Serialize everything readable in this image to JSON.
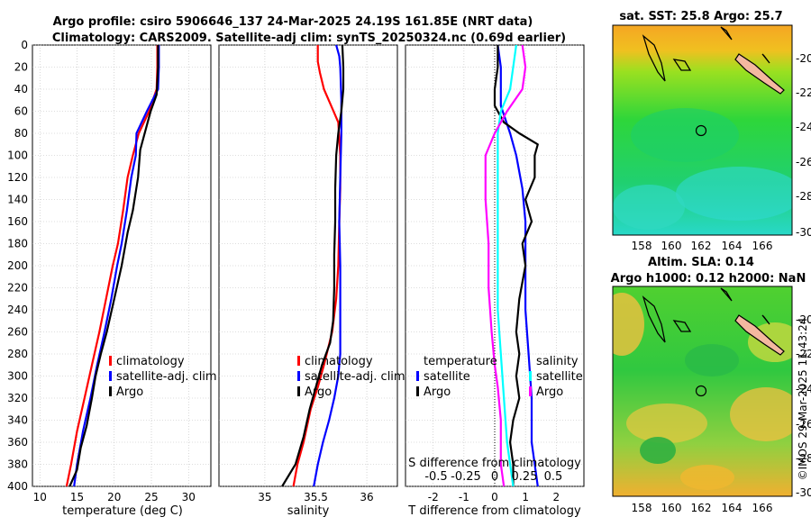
{
  "title": {
    "line1": "Argo profile: csiro 5906646_137 24-Mar-2025 24.19S 161.85E (NRT data)",
    "line2": "Climatology: CARS2009. Satellite-adj clim: synTS_20250324.nc (0.69d earlier)"
  },
  "footer": "©IMOS 29-Mar-2025 11:43:24",
  "colors": {
    "climatology": "#ff0000",
    "satellite": "#0000ff",
    "argo": "#000000",
    "satellite_salinity": "#00ffff",
    "climatology_salinity": "#ff00ff"
  },
  "chart_data": [
    {
      "type": "line",
      "id": "temperature",
      "xlabel": "temperature (deg C)",
      "xlim": [
        9,
        33
      ],
      "xticks": [
        10,
        15,
        20,
        25,
        30
      ],
      "ylim": [
        0,
        400
      ],
      "yticks": [
        0,
        20,
        40,
        60,
        80,
        100,
        120,
        140,
        160,
        180,
        200,
        220,
        240,
        260,
        280,
        300,
        320,
        340,
        360,
        380,
        400
      ],
      "ydirection": "reversed",
      "legend": [
        "climatology",
        "satellite-adj. clim",
        "Argo"
      ],
      "series": [
        {
          "name": "climatology",
          "color": "#ff0000",
          "points": [
            [
              25.8,
              0
            ],
            [
              25.8,
              20
            ],
            [
              25.7,
              40
            ],
            [
              24.7,
              60
            ],
            [
              23.3,
              80
            ],
            [
              22.5,
              100
            ],
            [
              21.8,
              120
            ],
            [
              21.2,
              150
            ],
            [
              20.5,
              180
            ],
            [
              19.8,
              200
            ],
            [
              18.9,
              230
            ],
            [
              18.0,
              260
            ],
            [
              17.0,
              290
            ],
            [
              16.0,
              320
            ],
            [
              15.0,
              350
            ],
            [
              14.2,
              380
            ],
            [
              13.6,
              400
            ]
          ]
        },
        {
          "name": "satellite-adj. clim",
          "color": "#0000ff",
          "points": [
            [
              26.0,
              0
            ],
            [
              26.0,
              20
            ],
            [
              25.9,
              40
            ],
            [
              24.4,
              60
            ],
            [
              23.0,
              80
            ],
            [
              22.9,
              100
            ],
            [
              22.3,
              120
            ],
            [
              21.7,
              150
            ],
            [
              21.0,
              180
            ],
            [
              20.4,
              200
            ],
            [
              19.6,
              230
            ],
            [
              18.7,
              260
            ],
            [
              17.7,
              290
            ],
            [
              16.8,
              320
            ],
            [
              15.8,
              350
            ],
            [
              15.0,
              380
            ],
            [
              14.6,
              400
            ]
          ]
        },
        {
          "name": "Argo",
          "color": "#000000",
          "points": [
            [
              25.9,
              0
            ],
            [
              25.9,
              20
            ],
            [
              25.7,
              45
            ],
            [
              24.9,
              60
            ],
            [
              24.3,
              75
            ],
            [
              23.5,
              95
            ],
            [
              23.2,
              120
            ],
            [
              22.5,
              150
            ],
            [
              21.8,
              170
            ],
            [
              21.0,
              200
            ],
            [
              20.0,
              230
            ],
            [
              19.0,
              260
            ],
            [
              18.2,
              280
            ],
            [
              17.5,
              300
            ],
            [
              17.0,
              320
            ],
            [
              16.3,
              345
            ],
            [
              15.5,
              365
            ],
            [
              15.0,
              385
            ],
            [
              14.0,
              400
            ]
          ]
        }
      ]
    },
    {
      "type": "line",
      "id": "salinity",
      "xlabel": "salinity",
      "xlim": [
        34.55,
        36.3
      ],
      "xticks": [
        35,
        35.5,
        36
      ],
      "ylim": [
        0,
        400
      ],
      "ydirection": "reversed",
      "legend": [
        "climatology",
        "satellite-adj. clim",
        "Argo"
      ],
      "series": [
        {
          "name": "climatology",
          "color": "#ff0000",
          "points": [
            [
              35.52,
              0
            ],
            [
              35.52,
              15
            ],
            [
              35.54,
              25
            ],
            [
              35.58,
              40
            ],
            [
              35.65,
              55
            ],
            [
              35.72,
              70
            ],
            [
              35.74,
              100
            ],
            [
              35.74,
              130
            ],
            [
              35.73,
              160
            ],
            [
              35.72,
              200
            ],
            [
              35.7,
              230
            ],
            [
              35.66,
              260
            ],
            [
              35.58,
              290
            ],
            [
              35.52,
              310
            ],
            [
              35.45,
              330
            ],
            [
              35.38,
              360
            ],
            [
              35.32,
              380
            ],
            [
              35.28,
              400
            ]
          ]
        },
        {
          "name": "satellite-adj. clim",
          "color": "#0000ff",
          "points": [
            [
              35.7,
              0
            ],
            [
              35.73,
              10
            ],
            [
              35.74,
              20
            ],
            [
              35.75,
              50
            ],
            [
              35.75,
              80
            ],
            [
              35.74,
              120
            ],
            [
              35.73,
              160
            ],
            [
              35.74,
              200
            ],
            [
              35.74,
              240
            ],
            [
              35.74,
              280
            ],
            [
              35.72,
              300
            ],
            [
              35.68,
              320
            ],
            [
              35.63,
              340
            ],
            [
              35.57,
              360
            ],
            [
              35.52,
              380
            ],
            [
              35.48,
              400
            ]
          ]
        },
        {
          "name": "Argo",
          "color": "#000000",
          "points": [
            [
              35.76,
              0
            ],
            [
              35.77,
              20
            ],
            [
              35.77,
              40
            ],
            [
              35.75,
              60
            ],
            [
              35.72,
              80
            ],
            [
              35.7,
              100
            ],
            [
              35.69,
              130
            ],
            [
              35.69,
              160
            ],
            [
              35.68,
              190
            ],
            [
              35.68,
              220
            ],
            [
              35.67,
              250
            ],
            [
              35.64,
              270
            ],
            [
              35.56,
              290
            ],
            [
              35.5,
              310
            ],
            [
              35.44,
              330
            ],
            [
              35.38,
              355
            ],
            [
              35.3,
              380
            ],
            [
              35.17,
              400
            ]
          ]
        }
      ]
    },
    {
      "type": "line",
      "id": "difference",
      "xlabel": "T difference from climatology",
      "xlim": [
        -2.9,
        2.9
      ],
      "xticks": [
        -2,
        -1,
        0,
        1,
        2
      ],
      "top_axis_label": "S difference from climatology",
      "top_axis_ticks": [
        "-0.5",
        "-0.25",
        "0",
        "0.25",
        "0.5"
      ],
      "ylim": [
        0,
        400
      ],
      "ydirection": "reversed",
      "legend_left_title": "temperature",
      "legend_left": [
        "satellite",
        "Argo"
      ],
      "legend_right_title": "salinity",
      "legend_right": [
        "satellite",
        "Argo"
      ],
      "series": [
        {
          "name": "temperature satellite",
          "color": "#0000ff",
          "points": [
            [
              0.1,
              0
            ],
            [
              0.2,
              20
            ],
            [
              0.2,
              40
            ],
            [
              0.2,
              55
            ],
            [
              0.5,
              80
            ],
            [
              0.7,
              100
            ],
            [
              0.9,
              130
            ],
            [
              1.0,
              160
            ],
            [
              1.0,
              200
            ],
            [
              1.0,
              240
            ],
            [
              1.1,
              280
            ],
            [
              1.2,
              320
            ],
            [
              1.2,
              360
            ],
            [
              1.4,
              400
            ]
          ]
        },
        {
          "name": "temperature Argo",
          "color": "#000000",
          "points": [
            [
              0.1,
              0
            ],
            [
              0.1,
              20
            ],
            [
              0.0,
              40
            ],
            [
              0.0,
              55
            ],
            [
              0.3,
              70
            ],
            [
              0.8,
              80
            ],
            [
              1.4,
              90
            ],
            [
              1.3,
              100
            ],
            [
              1.3,
              120
            ],
            [
              1.0,
              140
            ],
            [
              1.2,
              160
            ],
            [
              0.9,
              180
            ],
            [
              1.0,
              200
            ],
            [
              0.8,
              230
            ],
            [
              0.7,
              260
            ],
            [
              0.8,
              280
            ],
            [
              0.7,
              300
            ],
            [
              0.8,
              320
            ],
            [
              0.6,
              340
            ],
            [
              0.5,
              360
            ],
            [
              0.6,
              380
            ],
            [
              0.6,
              400
            ]
          ]
        },
        {
          "name": "salinity satellite",
          "color": "#00ffff",
          "points": [
            [
              0.7,
              0
            ],
            [
              0.6,
              20
            ],
            [
              0.5,
              40
            ],
            [
              0.2,
              60
            ],
            [
              0.1,
              80
            ],
            [
              0.1,
              120
            ],
            [
              0.1,
              160
            ],
            [
              0.1,
              200
            ],
            [
              0.1,
              240
            ],
            [
              0.2,
              280
            ],
            [
              0.3,
              320
            ],
            [
              0.4,
              360
            ],
            [
              0.6,
              400
            ]
          ]
        },
        {
          "name": "salinity Argo",
          "color": "#ff00ff",
          "points": [
            [
              0.9,
              0
            ],
            [
              1.0,
              20
            ],
            [
              0.9,
              40
            ],
            [
              0.4,
              60
            ],
            [
              0.0,
              80
            ],
            [
              -0.3,
              100
            ],
            [
              -0.3,
              140
            ],
            [
              -0.2,
              180
            ],
            [
              -0.2,
              220
            ],
            [
              -0.1,
              260
            ],
            [
              0.0,
              290
            ],
            [
              0.1,
              310
            ],
            [
              0.2,
              340
            ],
            [
              0.2,
              380
            ],
            [
              0.3,
              400
            ]
          ]
        }
      ]
    },
    {
      "type": "heatmap",
      "id": "sst-map",
      "title": "sat. SST: 25.8 Argo: 25.7",
      "xticks": [
        "158",
        "160",
        "162",
        "164",
        "166"
      ],
      "yticks": [
        "-20",
        "-22",
        "-24",
        "-26",
        "-28",
        "-30"
      ],
      "marker": {
        "lon": 161.85,
        "lat": -24.19
      }
    },
    {
      "type": "heatmap",
      "id": "sla-map",
      "title_line1": "Altim. SLA: 0.14",
      "title_line2": "Argo h1000: 0.12 h2000: NaN",
      "xticks": [
        "158",
        "160",
        "162",
        "164",
        "166"
      ],
      "yticks": [
        "-20",
        "-22",
        "-24",
        "-26",
        "-28",
        "-30"
      ],
      "marker": {
        "lon": 161.85,
        "lat": -24.19
      }
    }
  ]
}
